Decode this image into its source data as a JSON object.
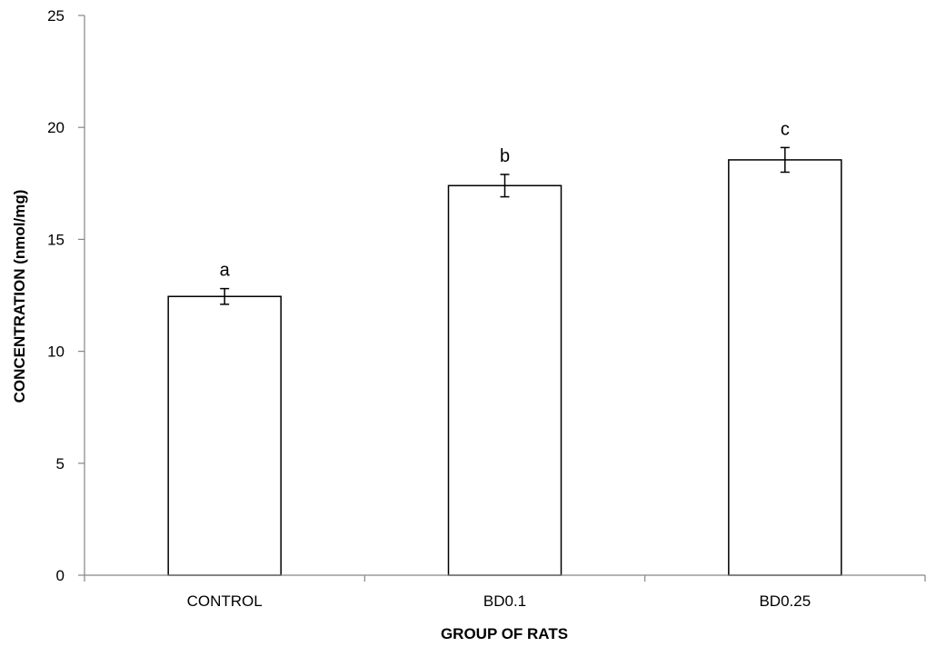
{
  "chart_data": {
    "type": "bar",
    "categories": [
      "CONTROL",
      "BD0.1",
      "BD0.25"
    ],
    "values": [
      12.45,
      17.4,
      18.55
    ],
    "errors": [
      0.35,
      0.5,
      0.55
    ],
    "bar_labels": [
      "a",
      "b",
      "c"
    ],
    "xlabel": "GROUP OF RATS",
    "ylabel": "CONCENTRATION (nmol/mg)",
    "ylim": [
      0,
      25
    ],
    "yticks": [
      0,
      5,
      10,
      15,
      20,
      25
    ],
    "grid": false,
    "bar_fill": "#ffffff",
    "bar_stroke": "#000000"
  }
}
